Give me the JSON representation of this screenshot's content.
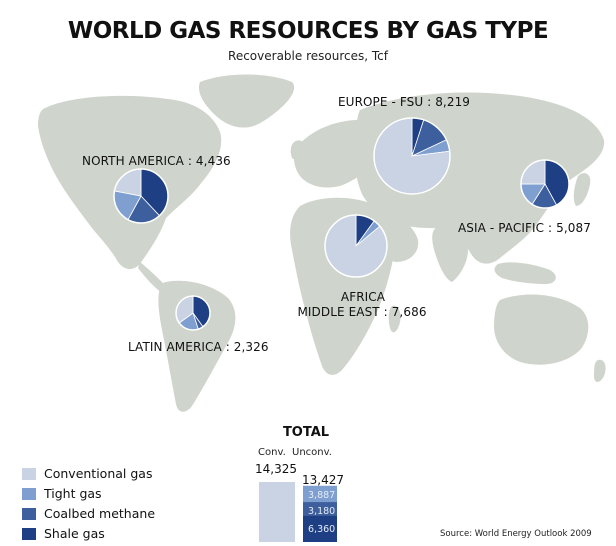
{
  "title": "WORLD GAS RESOURCES BY GAS TYPE",
  "subtitle": "Recoverable resources, Tcf",
  "colors": {
    "conventional": "#c9d3e3",
    "tight": "#7f9fd0",
    "coalbed": "#3d5f9e",
    "shale": "#1f3f85",
    "land": "#cfd5cd"
  },
  "legend": [
    {
      "key": "conventional",
      "label": "Conventional gas"
    },
    {
      "key": "tight",
      "label": "Tight gas"
    },
    {
      "key": "coalbed",
      "label": "Coalbed methane"
    },
    {
      "key": "shale",
      "label": "Shale gas"
    }
  ],
  "regions": {
    "north_america": {
      "label": "NORTH AMERICA : 4,436"
    },
    "europe_fsu": {
      "label": "EUROPE - FSU : 8,219"
    },
    "asia_pacific": {
      "label": "ASIA - PACIFIC : 5,087"
    },
    "africa_middle_east": {
      "label_line1": "AFRICA",
      "label_line2": "MIDDLE EAST : 7,686"
    },
    "latin_america": {
      "label": "LATIN AMERICA : 2,326"
    }
  },
  "chart_data": {
    "type": "pie",
    "unit": "Tcf",
    "pies": [
      {
        "region": "NORTH AMERICA",
        "total": 4436,
        "shares": {
          "conventional": 0.22,
          "tight": 0.2,
          "coalbed": 0.2,
          "shale": 0.38
        }
      },
      {
        "region": "EUROPE - FSU",
        "total": 8219,
        "shares": {
          "conventional": 0.77,
          "tight": 0.05,
          "coalbed": 0.13,
          "shale": 0.05
        }
      },
      {
        "region": "ASIA - PACIFIC",
        "total": 5087,
        "shares": {
          "conventional": 0.25,
          "tight": 0.16,
          "coalbed": 0.17,
          "shale": 0.42
        }
      },
      {
        "region": "AFRICA MIDDLE EAST",
        "total": 7686,
        "shares": {
          "conventional": 0.86,
          "tight": 0.04,
          "coalbed": 0.0,
          "shale": 0.1
        }
      },
      {
        "region": "LATIN AMERICA",
        "total": 2326,
        "shares": {
          "conventional": 0.35,
          "tight": 0.2,
          "coalbed": 0.05,
          "shale": 0.4
        }
      }
    ],
    "total_bar": {
      "title": "TOTAL",
      "conv": {
        "label": "Conv.",
        "value": 14325,
        "display": "14,325"
      },
      "unconv": {
        "label": "Unconv.",
        "value": 13427,
        "display": "13,427",
        "segments": [
          {
            "key": "tight",
            "value": 3887,
            "display": "3,887"
          },
          {
            "key": "coalbed",
            "value": 3180,
            "display": "3,180"
          },
          {
            "key": "shale",
            "value": 6360,
            "display": "6,360"
          }
        ]
      }
    }
  },
  "source": "Source: World Energy Outlook 2009"
}
